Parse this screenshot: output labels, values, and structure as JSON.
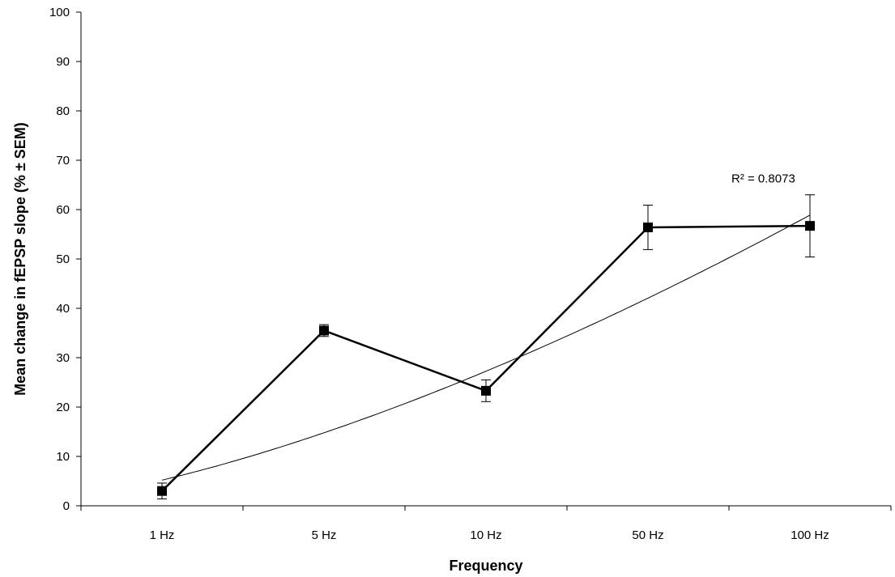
{
  "chart_data": {
    "type": "line",
    "categories": [
      "1 Hz",
      "5 Hz",
      "10 Hz",
      "50 Hz",
      "100 Hz"
    ],
    "series": [
      {
        "values": [
          3,
          35.5,
          23.3,
          56.4,
          56.7
        ],
        "error": [
          1.6,
          1.2,
          2.2,
          4.5,
          6.3
        ],
        "color": "#000000",
        "marker": "square"
      }
    ],
    "trendline": {
      "kind": "power",
      "a": 5.2,
      "b": 1.508,
      "color": "#000000",
      "r2_label": "R² = 0.8073"
    },
    "xlabel": "Frequency",
    "ylabel": "Mean change in fEPSP slope (% ± SEM)",
    "ylim": [
      0,
      100
    ],
    "yticks": [
      0,
      10,
      20,
      30,
      40,
      50,
      60,
      70,
      80,
      90,
      100
    ],
    "grid": false,
    "legend": "none"
  }
}
